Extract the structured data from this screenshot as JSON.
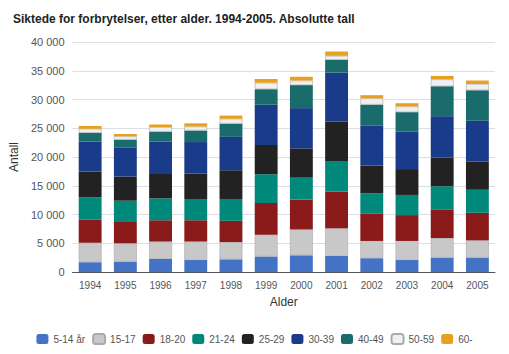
{
  "chart_data": {
    "type": "bar",
    "title": "Siktede for forbrytelser, etter alder. 1994-2005. Absolutte tall",
    "xlabel": "Alder",
    "ylabel": "Antall",
    "categories": [
      "1994",
      "1995",
      "1996",
      "1997",
      "1998",
      "1999",
      "2000",
      "2001",
      "2002",
      "2003",
      "2004",
      "2005"
    ],
    "series": [
      {
        "name": "5-14 år",
        "color": "#4472c4",
        "values": [
          1700,
          1800,
          2300,
          2100,
          2200,
          2700,
          2900,
          2800,
          2400,
          2100,
          2500,
          2500
        ]
      },
      {
        "name": "15-17",
        "color": "#c8c8c8",
        "values": [
          3400,
          3200,
          3000,
          3200,
          3000,
          3800,
          4500,
          4800,
          3000,
          3300,
          3400,
          3000
        ]
      },
      {
        "name": "18-20",
        "color": "#8b1a1a",
        "values": [
          4000,
          3700,
          3700,
          3700,
          3700,
          5500,
          5200,
          6400,
          4800,
          4500,
          5000,
          4800
        ]
      },
      {
        "name": "21-24",
        "color": "#00897b",
        "values": [
          3900,
          3700,
          3800,
          3700,
          3800,
          5000,
          3800,
          5200,
          3500,
          3500,
          4000,
          4000
        ]
      },
      {
        "name": "25-29",
        "color": "#222222",
        "values": [
          4500,
          4200,
          4400,
          4400,
          5000,
          5100,
          5100,
          7000,
          4800,
          4500,
          5000,
          4900
        ]
      },
      {
        "name": "30-39",
        "color": "#1a3a8a",
        "values": [
          5200,
          5000,
          5500,
          5500,
          5800,
          7000,
          7000,
          8500,
          7000,
          6500,
          7200,
          7100
        ]
      },
      {
        "name": "40-49",
        "color": "#1a6b6b",
        "values": [
          1500,
          1400,
          1700,
          2000,
          2300,
          2700,
          4000,
          2200,
          3600,
          3400,
          5200,
          5300
        ]
      },
      {
        "name": "50-59",
        "color": "#f0f0f0",
        "values": [
          700,
          600,
          800,
          700,
          850,
          1100,
          800,
          700,
          1100,
          1000,
          1200,
          1100
        ]
      },
      {
        "name": "60-",
        "color": "#e8a020",
        "values": [
          500,
          400,
          450,
          550,
          550,
          650,
          650,
          750,
          550,
          550,
          600,
          600
        ]
      }
    ],
    "stacked": true,
    "ylim": [
      0,
      40000
    ],
    "yticks": [
      0,
      {
        "value": 5000,
        "label": "5 000"
      },
      {
        "value": 10000,
        "label": "10 000"
      },
      {
        "value": 15000,
        "label": "15 000"
      },
      {
        "value": 20000,
        "label": "20 000"
      },
      {
        "value": 25000,
        "label": "25 000"
      },
      {
        "value": 30000,
        "label": "30 000"
      },
      {
        "value": 35000,
        "label": "35 000"
      },
      {
        "value": 40000,
        "label": "40 000"
      }
    ],
    "grid": true,
    "legend": "bottom"
  }
}
